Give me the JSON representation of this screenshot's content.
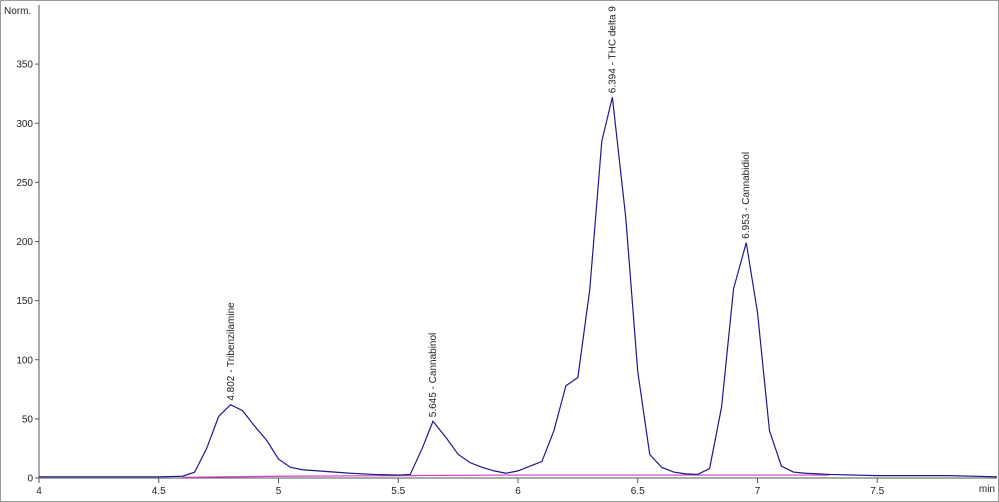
{
  "chart_data": {
    "type": "line",
    "ylabel": "Norm.",
    "xlabel": "min",
    "xlim": [
      4,
      8
    ],
    "ylim": [
      0,
      400
    ],
    "xticks": [
      4,
      4.5,
      5,
      5.5,
      6,
      6.5,
      7,
      7.5
    ],
    "yticks": [
      0,
      50,
      100,
      150,
      200,
      250,
      300,
      350
    ],
    "series": [
      {
        "color": "#1a1a8c",
        "x": [
          4.0,
          4.5,
          4.6,
          4.65,
          4.7,
          4.75,
          4.8,
          4.85,
          4.9,
          4.95,
          5.0,
          5.05,
          5.1,
          5.2,
          5.3,
          5.4,
          5.5,
          5.55,
          5.6,
          5.645,
          5.7,
          5.75,
          5.8,
          5.85,
          5.9,
          5.95,
          6.0,
          6.05,
          6.1,
          6.15,
          6.2,
          6.25,
          6.3,
          6.35,
          6.394,
          6.45,
          6.5,
          6.55,
          6.6,
          6.65,
          6.7,
          6.75,
          6.8,
          6.85,
          6.9,
          6.953,
          7.0,
          7.05,
          7.1,
          7.15,
          7.2,
          7.3,
          7.5,
          7.8,
          8.0
        ],
        "values": [
          1,
          1,
          1.5,
          5,
          25,
          52,
          62,
          57,
          44,
          32,
          16,
          9,
          7,
          5.5,
          4,
          3,
          2.5,
          3,
          25,
          48,
          34,
          20,
          13,
          9,
          6,
          4,
          6,
          10,
          14,
          40,
          78,
          85,
          160,
          285,
          322,
          220,
          90,
          20,
          9,
          5,
          3.5,
          3,
          8,
          60,
          160,
          199,
          140,
          40,
          10,
          5,
          4,
          3,
          2,
          2,
          1
        ]
      },
      {
        "color": "#d040c8",
        "x": [
          4.6,
          5.0,
          5.5,
          6.0,
          6.5,
          7.0,
          7.3
        ],
        "values": [
          0.5,
          1.5,
          2,
          2.5,
          2.5,
          2.5,
          2.5
        ]
      }
    ],
    "annotations": [
      {
        "x": 4.802,
        "y": 62,
        "text": "4.802 -  Tribenzilamine"
      },
      {
        "x": 5.645,
        "y": 48,
        "text": "5.645 -  Cannabinol"
      },
      {
        "x": 6.394,
        "y": 322,
        "text": "6.394 -  THC delta 9"
      },
      {
        "x": 6.953,
        "y": 199,
        "text": "6.953 -  Cannabidiol"
      }
    ]
  }
}
